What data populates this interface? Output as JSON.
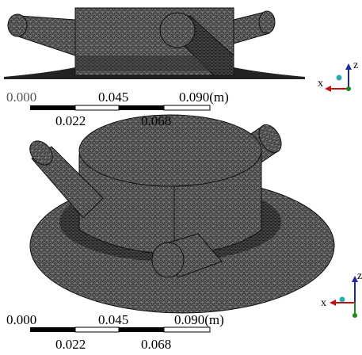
{
  "views": [
    {
      "scale_bar": {
        "top_labels": [
          "0.000",
          "0.045",
          "0.090(m)"
        ],
        "bottom_labels": [
          "0.022",
          "0.068"
        ]
      },
      "axes": {
        "x": "x",
        "z": "z"
      }
    },
    {
      "scale_bar": {
        "top_labels": [
          "0.000",
          "0.045",
          "0.090(m)"
        ],
        "bottom_labels": [
          "0.022",
          "0.068"
        ]
      },
      "axes": {
        "x": "x",
        "z": "z"
      }
    }
  ]
}
